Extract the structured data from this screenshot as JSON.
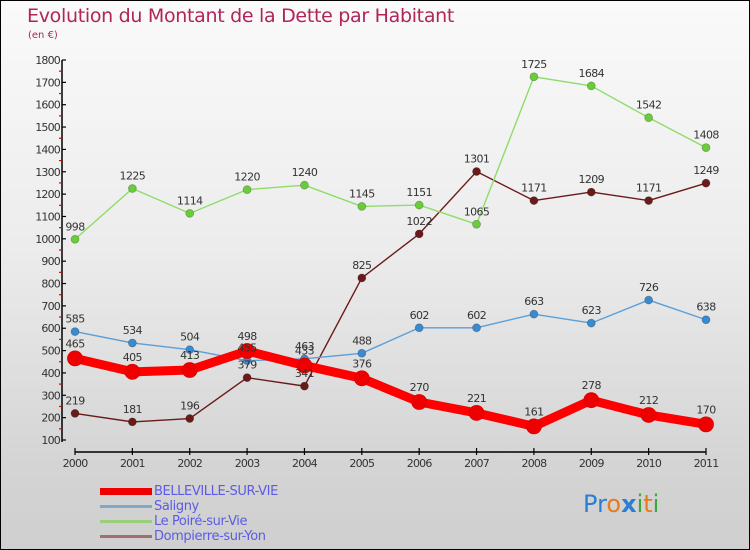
{
  "header": {
    "title": "Evolution du Montant de la Dette par Habitant",
    "subtitle": "(en €)"
  },
  "logo": {
    "letters": [
      {
        "char": "P",
        "color": "#2a7fd4"
      },
      {
        "char": "r",
        "color": "#2a7fd4"
      },
      {
        "char": "o",
        "color": "#e87a1a"
      },
      {
        "char": "x",
        "color": "#2a7fd4"
      },
      {
        "char": "i",
        "color": "#3aa83a"
      },
      {
        "char": "t",
        "color": "#e87a1a"
      },
      {
        "char": "i",
        "color": "#3aa83a"
      }
    ]
  },
  "chart_data": {
    "type": "line",
    "title": "Evolution du Montant de la Dette par Habitant",
    "subtitle": "(en €)",
    "xlabel": "",
    "ylabel": "(en €)",
    "x": [
      "2000",
      "2001",
      "2002",
      "2003",
      "2004",
      "2005",
      "2006",
      "2007",
      "2008",
      "2009",
      "2010",
      "2011"
    ],
    "ylim": [
      100,
      1800
    ],
    "yticks": [
      100,
      200,
      300,
      400,
      500,
      600,
      700,
      800,
      900,
      1000,
      1100,
      1200,
      1300,
      1400,
      1500,
      1600,
      1700,
      1800
    ],
    "grid": false,
    "legend_position": "bottom-left",
    "series": [
      {
        "name": "Dompierre-sur-Yon",
        "color": "#6b1a1a",
        "legend_color": "#a07070",
        "values": [
          219,
          181,
          196,
          379,
          341,
          825,
          1022,
          1301,
          1171,
          1209,
          1171,
          1249
        ],
        "weight": "thin"
      },
      {
        "name": "Le Poiré-sur-Vie",
        "color": "#8fdc6a",
        "marker_color": "#6acc3a",
        "legend_color": "#9ad07a",
        "values": [
          998,
          1225,
          1114,
          1220,
          1240,
          1145,
          1151,
          1065,
          1725,
          1684,
          1542,
          1408
        ],
        "weight": "thin"
      },
      {
        "name": "Saligny",
        "color": "#5a9fd8",
        "marker_color": "#3a8ad0",
        "legend_color": "#80a8c8",
        "values": [
          585,
          534,
          504,
          455,
          463,
          488,
          602,
          602,
          663,
          623,
          726,
          638
        ],
        "weight": "thin"
      },
      {
        "name": "BELLEVILLE-SUR-VIE",
        "color": "#ff0000",
        "marker_color": "#ee0000",
        "legend_color": "#ee0000",
        "values": [
          465,
          405,
          413,
          498,
          433,
          376,
          270,
          221,
          161,
          278,
          212,
          170
        ],
        "weight": "thick"
      }
    ],
    "legend_order": [
      "BELLEVILLE-SUR-VIE",
      "Saligny",
      "Le Poiré-sur-Vie",
      "Dompierre-sur-Yon"
    ]
  }
}
